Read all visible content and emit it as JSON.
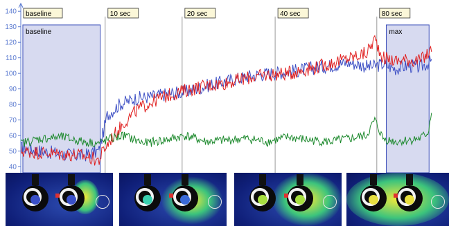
{
  "chart_data": {
    "type": "line",
    "title": "",
    "xlabel": "",
    "ylabel": "",
    "ylim": [
      36,
      145
    ],
    "y_ticks": [
      40,
      50,
      60,
      70,
      80,
      90,
      100,
      110,
      120,
      130,
      140
    ],
    "grid": false,
    "x_range": [
      0,
      100
    ],
    "events": [
      {
        "label": "baseline",
        "x": 0
      },
      {
        "label": "10 sec",
        "x": 20.5
      },
      {
        "label": "20 sec",
        "x": 39.2
      },
      {
        "label": "40 sec",
        "x": 61.8
      },
      {
        "label": "80 sec",
        "x": 86.5
      }
    ],
    "windows": [
      {
        "label": "baseline",
        "x0": 0.5,
        "x1": 19.3
      },
      {
        "label": "max",
        "x0": 88.8,
        "x1": 99.2
      }
    ],
    "series": [
      {
        "color": "#3d4fc4",
        "x": [
          0,
          5,
          10,
          15,
          19,
          21,
          24,
          28,
          32,
          36,
          40,
          45,
          50,
          55,
          60,
          65,
          70,
          75,
          80,
          85,
          88,
          91,
          94,
          97,
          100
        ],
        "values": [
          52,
          50,
          48,
          47,
          50,
          73,
          80,
          84,
          85,
          87,
          88,
          92,
          95,
          98,
          100,
          101,
          103,
          105,
          107,
          104,
          106,
          103,
          105,
          104,
          108
        ]
      },
      {
        "color": "#e02020",
        "x": [
          0,
          5,
          10,
          15,
          19,
          20,
          22,
          25,
          28,
          32,
          36,
          40,
          45,
          50,
          55,
          60,
          65,
          70,
          75,
          80,
          84,
          86,
          88,
          91,
          94,
          97,
          100
        ],
        "values": [
          50,
          49,
          48,
          47,
          44,
          50,
          58,
          68,
          76,
          82,
          86,
          89,
          92,
          94,
          97,
          99,
          100,
          103,
          106,
          110,
          113,
          122,
          110,
          108,
          109,
          108,
          115
        ]
      },
      {
        "color": "#1e8a2e",
        "x": [
          0,
          5,
          10,
          15,
          19,
          22,
          25,
          30,
          35,
          40,
          45,
          50,
          55,
          60,
          65,
          70,
          75,
          80,
          84,
          86,
          88,
          91,
          94,
          97,
          99,
          100
        ],
        "values": [
          55,
          58,
          59,
          56,
          55,
          58,
          60,
          55,
          57,
          60,
          56,
          57,
          58,
          56,
          59,
          57,
          56,
          58,
          60,
          70,
          58,
          56,
          57,
          58,
          62,
          80
        ]
      }
    ]
  }
}
